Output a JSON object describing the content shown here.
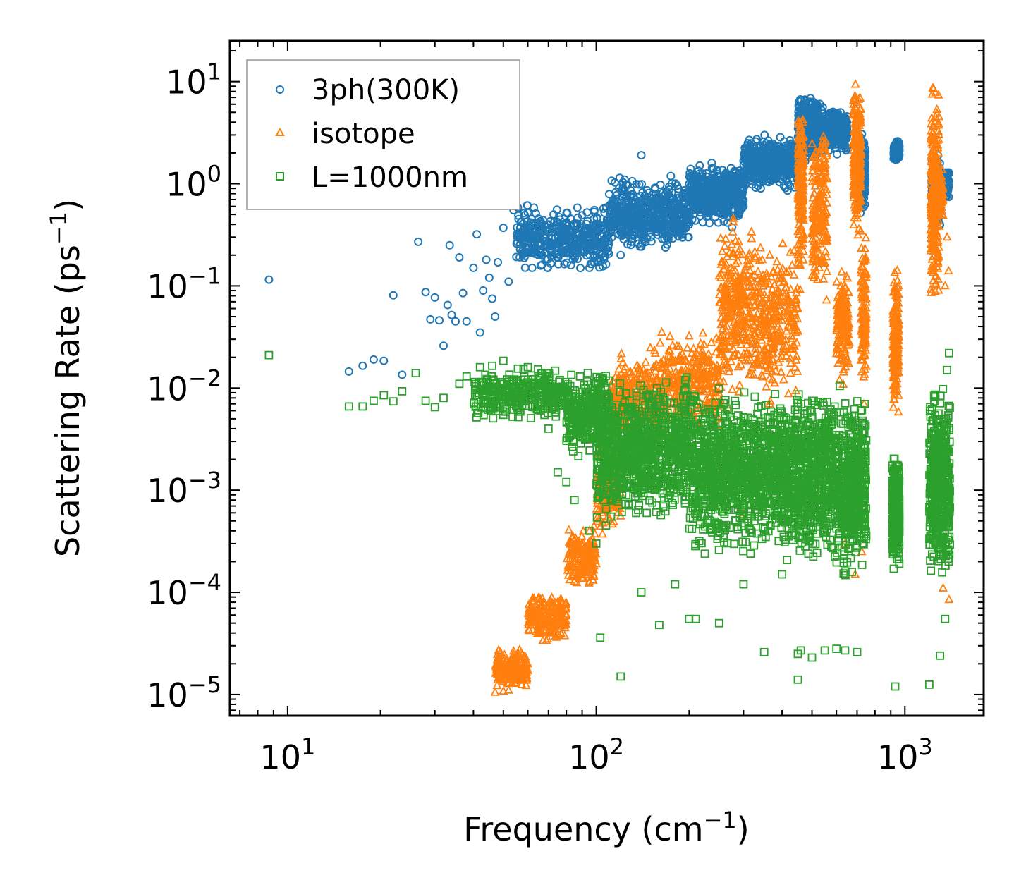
{
  "chart_data": {
    "type": "scatter",
    "title": "",
    "xscale": "log",
    "yscale": "log",
    "xlabel": {
      "main": "Frequency (cm",
      "sup": "−1",
      "close": ")"
    },
    "ylabel": {
      "main": "Scattering Rate (ps",
      "sup": "−1",
      "close": ")"
    },
    "xlim": [
      6.5,
      1800
    ],
    "ylim": [
      6.2e-06,
      25
    ],
    "x_ticks": [
      {
        "value": 10,
        "base": "10",
        "exp": "1"
      },
      {
        "value": 100,
        "base": "10",
        "exp": "2"
      },
      {
        "value": 1000,
        "base": "10",
        "exp": "3"
      }
    ],
    "y_ticks": [
      {
        "value": 1e-05,
        "base": "10",
        "exp": "−5"
      },
      {
        "value": 0.0001,
        "base": "10",
        "exp": "−4"
      },
      {
        "value": 0.001,
        "base": "10",
        "exp": "−3"
      },
      {
        "value": 0.01,
        "base": "10",
        "exp": "−2"
      },
      {
        "value": 0.1,
        "base": "10",
        "exp": "−1"
      },
      {
        "value": 1,
        "base": "10",
        "exp": "0"
      },
      {
        "value": 10,
        "base": "10",
        "exp": "1"
      }
    ],
    "legend_position": "top-left",
    "series": [
      {
        "name": "3ph(300K)",
        "color": "#1f77b4",
        "marker": "circle",
        "points": [
          [
            8.7,
            0.115
          ],
          [
            15.8,
            0.0145
          ],
          [
            17.5,
            0.0165
          ],
          [
            19,
            0.019
          ],
          [
            20.5,
            0.0185
          ],
          [
            22,
            0.081
          ],
          [
            23.5,
            0.0135
          ],
          [
            26.5,
            0.27
          ],
          [
            28,
            0.087
          ],
          [
            29,
            0.047
          ],
          [
            30,
            0.077
          ],
          [
            31,
            0.046
          ],
          [
            32,
            0.026
          ],
          [
            33,
            0.065
          ],
          [
            33.5,
            0.25
          ],
          [
            34,
            0.052
          ],
          [
            35,
            0.045
          ],
          [
            36,
            0.19
          ],
          [
            37,
            0.085
          ],
          [
            38,
            0.045
          ],
          [
            40,
            0.15
          ],
          [
            41,
            0.32
          ],
          [
            42,
            0.035
          ],
          [
            43,
            0.09
          ],
          [
            44,
            0.18
          ],
          [
            45,
            0.12
          ],
          [
            46,
            0.075
          ],
          [
            47,
            0.05
          ],
          [
            48,
            0.17
          ],
          [
            50,
            0.37
          ],
          [
            52,
            0.11
          ],
          [
            54,
            0.55
          ],
          [
            56,
            0.45
          ],
          [
            58,
            0.21
          ],
          [
            60,
            0.52
          ],
          [
            62,
            0.15
          ],
          [
            64,
            0.28
          ],
          [
            66,
            0.43
          ],
          [
            70,
            0.4
          ],
          [
            75,
            0.3
          ],
          [
            80,
            0.35
          ],
          [
            85,
            0.22
          ],
          [
            90,
            0.3
          ],
          [
            95,
            0.15
          ],
          [
            120,
            0.2
          ],
          [
            130,
            0.27
          ],
          [
            140,
            1.9
          ],
          [
            150,
            0.3
          ],
          [
            200,
            0.42
          ],
          [
            300,
            0.6
          ],
          [
            400,
            1.2
          ],
          [
            450,
            2.2
          ]
        ],
        "bands": [
          {
            "x": [
              55,
              110
            ],
            "y": [
              0.12,
              0.7
            ],
            "n": 420
          },
          {
            "x": [
              110,
              200
            ],
            "y": [
              0.2,
              1.3
            ],
            "n": 520
          },
          {
            "x": [
              200,
              300
            ],
            "y": [
              0.35,
              1.8
            ],
            "n": 500
          },
          {
            "x": [
              300,
              450
            ],
            "y": [
              0.8,
              3.2
            ],
            "n": 500
          },
          {
            "x": [
              450,
              530
            ],
            "y": [
              1.5,
              8.5
            ],
            "n": 400
          },
          {
            "x": [
              530,
              650
            ],
            "y": [
              1.8,
              6.0
            ],
            "n": 320
          },
          {
            "x": [
              700,
              745
            ],
            "y": [
              0.4,
              4.0
            ],
            "n": 260
          },
          {
            "x": [
              920,
              960
            ],
            "y": [
              1.6,
              2.7
            ],
            "n": 160
          },
          {
            "x": [
              1220,
              1300
            ],
            "y": [
              0.3,
              2.3
            ],
            "n": 160
          },
          {
            "x": [
              1300,
              1390
            ],
            "y": [
              0.7,
              1.5
            ],
            "n": 120
          }
        ]
      },
      {
        "name": "isotope",
        "color": "#ff7f0e",
        "marker": "triangle",
        "points": [
          [
            47,
            1.05e-05
          ],
          [
            50,
            1.08e-05
          ],
          [
            52,
            1.1e-05
          ],
          [
            55,
            1.3e-05
          ],
          [
            60,
            2e-05
          ],
          [
            65,
            4e-05
          ],
          [
            75,
            8e-05
          ],
          [
            85,
            0.0002
          ],
          [
            95,
            0.0004
          ],
          [
            300,
            0.0006
          ],
          [
            470,
            0.0008
          ],
          [
            640,
            0.0003
          ],
          [
            690,
            0.00015
          ],
          [
            725,
            0.00025
          ],
          [
            1330,
            0.00011
          ],
          [
            1390,
            8.5e-05
          ],
          [
            1350,
            0.1
          ],
          [
            1385,
            0.14
          ],
          [
            1370,
            0.3
          ]
        ],
        "bands": [
          {
            "x": [
              47,
              60
            ],
            "y": [
              1.05e-05,
              3e-05
            ],
            "n": 200
          },
          {
            "x": [
              60,
              80
            ],
            "y": [
              3e-05,
              0.00012
            ],
            "n": 200
          },
          {
            "x": [
              80,
              100
            ],
            "y": [
              0.0001,
              0.0005
            ],
            "n": 160
          },
          {
            "x": [
              100,
              120
            ],
            "y": [
              0.0003,
              0.004
            ],
            "n": 200
          },
          {
            "x": [
              110,
              160
            ],
            "y": [
              0.002,
              0.03
            ],
            "n": 320
          },
          {
            "x": [
              160,
              250
            ],
            "y": [
              0.003,
              0.045
            ],
            "n": 300
          },
          {
            "x": [
              250,
              330
            ],
            "y": [
              0.004,
              0.6
            ],
            "n": 320
          },
          {
            "x": [
              330,
              450
            ],
            "y": [
              0.005,
              0.4
            ],
            "n": 280
          },
          {
            "x": [
              450,
              470
            ],
            "y": [
              0.08,
              9.0
            ],
            "n": 180
          },
          {
            "x": [
              500,
              560
            ],
            "y": [
              0.05,
              7.0
            ],
            "n": 200
          },
          {
            "x": [
              600,
              660
            ],
            "y": [
              0.01,
              0.2
            ],
            "n": 160
          },
          {
            "x": [
              680,
              720
            ],
            "y": [
              0.2,
              15.0
            ],
            "n": 240
          },
          {
            "x": [
              720,
              750
            ],
            "y": [
              0.005,
              0.5
            ],
            "n": 120
          },
          {
            "x": [
              915,
              955
            ],
            "y": [
              0.005,
              0.18
            ],
            "n": 200
          },
          {
            "x": [
              1210,
              1290
            ],
            "y": [
              0.05,
              12.0
            ],
            "n": 320
          },
          {
            "x": [
              1290,
              1330
            ],
            "y": [
              0.4,
              1.5
            ],
            "n": 60
          }
        ]
      },
      {
        "name": "L=1000nm",
        "color": "#2ca02c",
        "marker": "square",
        "points": [
          [
            8.7,
            0.021
          ],
          [
            15.8,
            0.0066
          ],
          [
            17.5,
            0.0066
          ],
          [
            19,
            0.0075
          ],
          [
            20.5,
            0.0085
          ],
          [
            22,
            0.0074
          ],
          [
            23.5,
            0.0093
          ],
          [
            26,
            0.014
          ],
          [
            28,
            0.0075
          ],
          [
            30,
            0.0065
          ],
          [
            32,
            0.008
          ],
          [
            36,
            0.011
          ],
          [
            38,
            0.013
          ],
          [
            42,
            0.016
          ],
          [
            46,
            0.0165
          ],
          [
            50,
            0.0185
          ],
          [
            55,
            0.012
          ],
          [
            60,
            0.016
          ],
          [
            70,
            0.004
          ],
          [
            75,
            0.0015
          ],
          [
            80,
            0.0012
          ],
          [
            85,
            0.0008
          ],
          [
            95,
            0.0004
          ],
          [
            100,
            0.0003
          ],
          [
            103,
            3.6e-05
          ],
          [
            120,
            1.5e-05
          ],
          [
            140,
            0.0001
          ],
          [
            160,
            4.8e-05
          ],
          [
            180,
            0.00012
          ],
          [
            200,
            5.5e-05
          ],
          [
            210,
            5.5e-05
          ],
          [
            250,
            5e-05
          ],
          [
            300,
            0.00012
          ],
          [
            350,
            2.6e-05
          ],
          [
            400,
            0.00015
          ],
          [
            450,
            2.5e-05
          ],
          [
            450,
            1.4e-05
          ],
          [
            460,
            2.7e-05
          ],
          [
            500,
            2.3e-05
          ],
          [
            550,
            2.7e-05
          ],
          [
            600,
            2.8e-05
          ],
          [
            640,
            2.7e-05
          ],
          [
            700,
            2.6e-05
          ],
          [
            930,
            1.2e-05
          ],
          [
            1200,
            1.25e-05
          ],
          [
            1300,
            2.4e-05
          ],
          [
            1350,
            5.5e-05
          ],
          [
            1380,
            0.0025
          ],
          [
            1390,
            0.022
          ],
          [
            1370,
            0.015
          ]
        ],
        "bands": [
          {
            "x": [
              40,
              80
            ],
            "y": [
              0.0045,
              0.018
            ],
            "n": 320
          },
          {
            "x": [
              80,
              110
            ],
            "y": [
              0.002,
              0.016
            ],
            "n": 320
          },
          {
            "x": [
              100,
              200
            ],
            "y": [
              0.0004,
              0.015
            ],
            "n": 900
          },
          {
            "x": [
              200,
              400
            ],
            "y": [
              0.0002,
              0.012
            ],
            "n": 1000
          },
          {
            "x": [
              400,
              600
            ],
            "y": [
              0.00015,
              0.015
            ],
            "n": 700
          },
          {
            "x": [
              600,
              750
            ],
            "y": [
              0.0001,
              0.012
            ],
            "n": 500
          },
          {
            "x": [
              910,
              960
            ],
            "y": [
              0.00015,
              0.003
            ],
            "n": 300
          },
          {
            "x": [
              1200,
              1400
            ],
            "y": [
              8e-05,
              0.015
            ],
            "n": 500
          }
        ]
      }
    ]
  }
}
